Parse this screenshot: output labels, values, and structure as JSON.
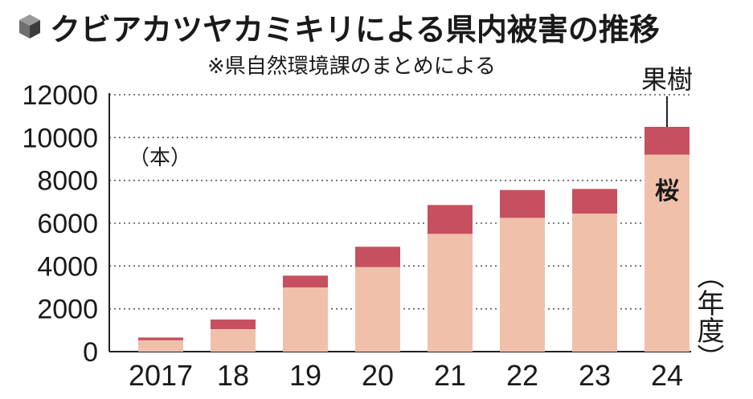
{
  "header": {
    "title": "クビアカツヤカミキリによる県内被害の推移",
    "subtitle": "※県自然環境課のまとめによる",
    "icon": "cube-icon"
  },
  "chart_data": {
    "type": "bar",
    "stacked": true,
    "categories": [
      "2017",
      "18",
      "19",
      "20",
      "21",
      "22",
      "23",
      "24"
    ],
    "series": [
      {
        "name": "桜",
        "values": [
          530,
          1050,
          3000,
          3950,
          5500,
          6250,
          6450,
          9200
        ],
        "color": "#f1c0aa"
      },
      {
        "name": "果樹",
        "values": [
          130,
          450,
          550,
          950,
          1350,
          1300,
          1150,
          1300
        ],
        "color": "#c6505f"
      }
    ],
    "ylim": [
      0,
      12000
    ],
    "yticks": [
      "0",
      "2000",
      "4000",
      "6000",
      "8000",
      "10000",
      "12000"
    ],
    "ylabel": "（本）",
    "xlabel": "（年度）",
    "grid": "dotted horizontal"
  }
}
